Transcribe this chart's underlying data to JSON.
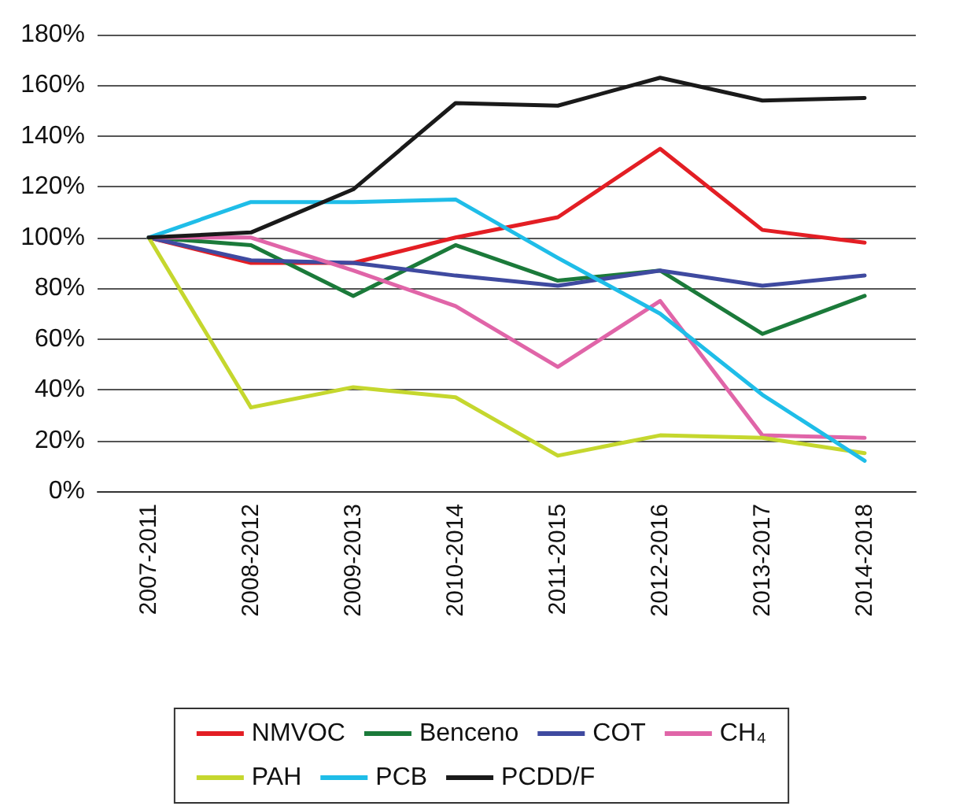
{
  "chart_data": {
    "type": "line",
    "categories": [
      "2007-2011",
      "2008-2012",
      "2009-2013",
      "2010-2014",
      "2011-2015",
      "2012-2016",
      "2013-2017",
      "2014-2018"
    ],
    "series": [
      {
        "name": "NMVOC",
        "color": "#e31e24",
        "values": [
          100,
          90,
          90,
          100,
          108,
          135,
          103,
          98
        ]
      },
      {
        "name": "Benceno",
        "color": "#1b7a3a",
        "values": [
          100,
          97,
          77,
          97,
          83,
          87,
          62,
          77
        ]
      },
      {
        "name": "COT",
        "color": "#3f4aa0",
        "values": [
          100,
          91,
          90,
          85,
          81,
          87,
          81,
          85
        ]
      },
      {
        "name": "CH₄",
        "color": "#e065a8",
        "values": [
          100,
          100,
          87,
          73,
          49,
          75,
          22,
          21
        ]
      },
      {
        "name": "PAH",
        "color": "#c5d72e",
        "values": [
          100,
          33,
          41,
          37,
          14,
          22,
          21,
          15
        ]
      },
      {
        "name": "PCB",
        "color": "#1fbde8",
        "values": [
          100,
          114,
          114,
          115,
          92,
          70,
          38,
          12
        ]
      },
      {
        "name": "PCDD/F",
        "color": "#1a1a1a",
        "values": [
          100,
          102,
          119,
          153,
          152,
          163,
          154,
          155
        ]
      }
    ],
    "ylim": [
      0,
      180
    ],
    "yticks": [
      {
        "value": 0,
        "label": "0%"
      },
      {
        "value": 20,
        "label": "20%"
      },
      {
        "value": 40,
        "label": "40%"
      },
      {
        "value": 60,
        "label": "60%"
      },
      {
        "value": 80,
        "label": "80%"
      },
      {
        "value": 100,
        "label": "100%"
      },
      {
        "value": 120,
        "label": "120%"
      },
      {
        "value": 140,
        "label": "140%"
      },
      {
        "value": 160,
        "label": "160%"
      },
      {
        "value": 180,
        "label": "180%"
      }
    ],
    "grid": "y",
    "legend": "bottom",
    "marker": "none",
    "line_style": "solid"
  }
}
